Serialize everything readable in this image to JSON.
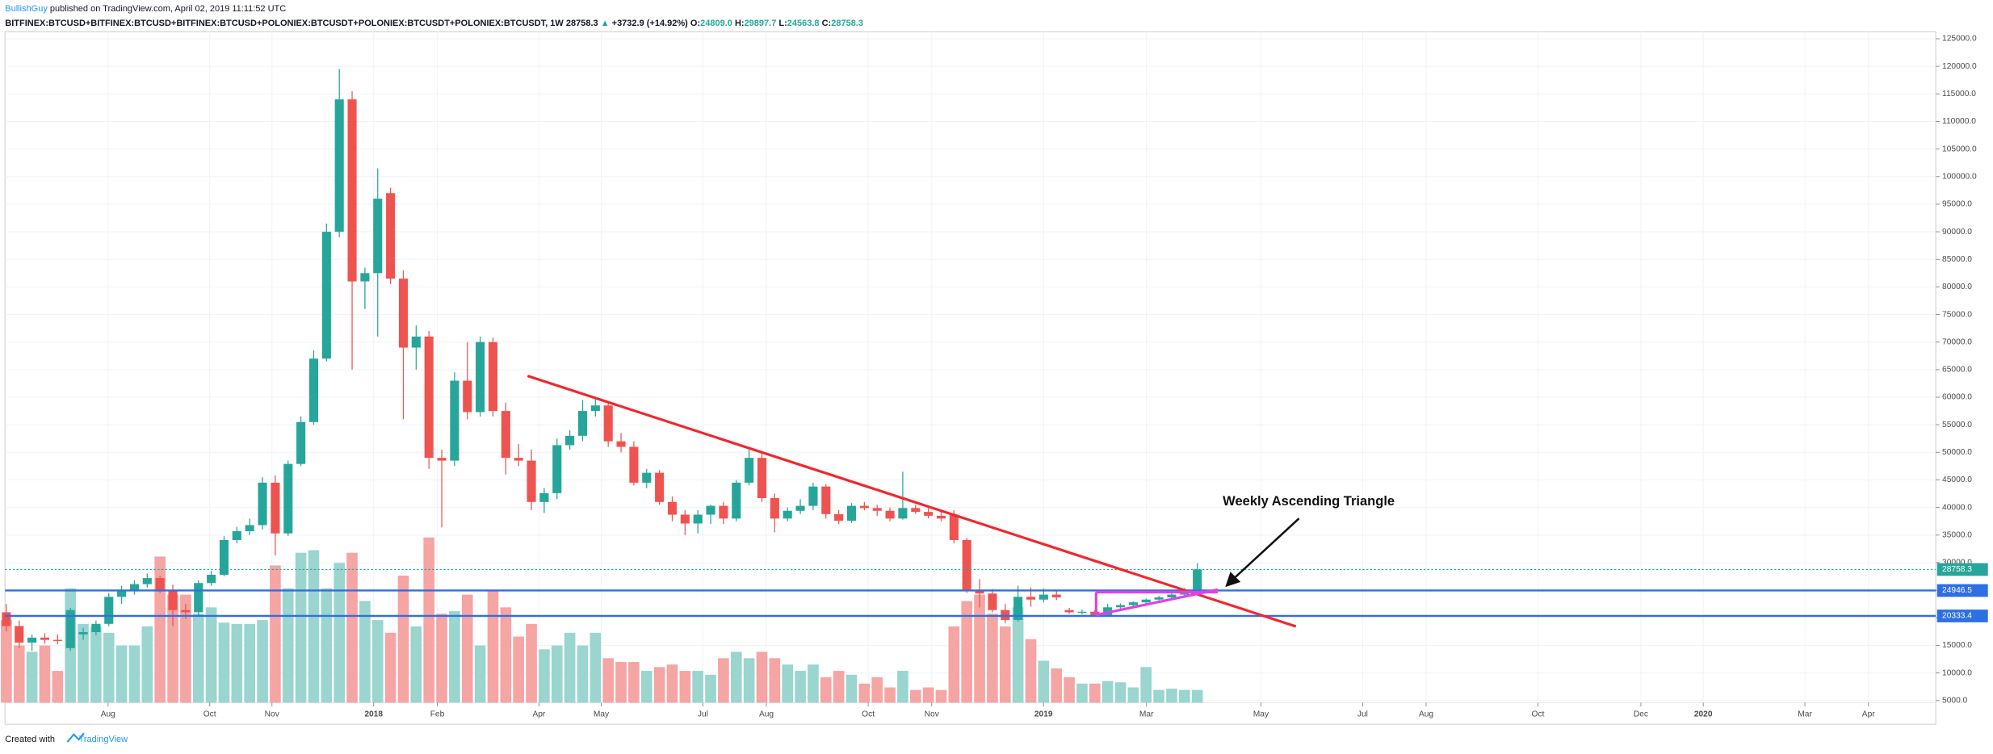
{
  "chart_data": {
    "type": "candlestick",
    "header": {
      "author": "BullishGuy",
      "published": "published on TradingView.com, April 02, 2019 11:11:52 UTC",
      "symbol": "BITFINEX:BTCUSD+BITFINEX:BTCUSD+BITFINEX:BTCUSD+POLONIEX:BTCUSDT+POLONIEX:BTCUSDT+POLONIEX:BTCUSDT, 1W",
      "last": "28758.3",
      "arrow": "▲",
      "change": "+3732.9 (+14.92%)",
      "ohlc": [
        {
          "label": "O:",
          "value": "24809.0"
        },
        {
          "label": "H:",
          "value": "29897.7"
        },
        {
          "label": "L:",
          "value": "24563.8"
        },
        {
          "label": "C:",
          "value": "28758.3"
        }
      ]
    },
    "annotation": "Weekly Ascending Triangle",
    "footer": {
      "text": "Created with",
      "brand": "TradingView"
    },
    "up_color": "#26a69a",
    "down_color": "#ef5350",
    "volume_up_color": "#9ad5cf",
    "volume_down_color": "#f5a5a4",
    "open": [
      21000,
      18500,
      15500,
      16400,
      16000,
      14500,
      17000,
      17400,
      18900,
      23800,
      25000,
      26100,
      27200,
      24900,
      21400,
      21000,
      26300,
      27800,
      34100,
      35700,
      36800,
      44500,
      35300,
      47900,
      55500,
      67000,
      90000,
      114000,
      81000,
      82500,
      97000,
      81500,
      69000,
      71000,
      49000,
      48500,
      63000,
      57300,
      70000,
      57500,
      49000,
      48500,
      41000,
      42600,
      51300,
      53000,
      57500,
      58500,
      52000,
      51000,
      44500,
      46300,
      41000,
      38700,
      37100,
      38700,
      40300,
      38000,
      44500,
      49000,
      41700,
      38000,
      39400,
      40300,
      43800,
      38800,
      37600,
      40300,
      39900,
      39400,
      38000,
      39900,
      39200,
      38500,
      38700,
      34100,
      25000,
      24400,
      21400,
      19600,
      23800,
      23300,
      24200,
      21400,
      21000,
      21100,
      20500,
      21900,
      22300,
      22800,
      23300,
      23700,
      24200,
      24809
    ],
    "high": [
      22500,
      19500,
      17000,
      17200,
      17000,
      21800,
      18200,
      19500,
      24500,
      25800,
      26800,
      28000,
      27600,
      26000,
      22500,
      26800,
      28500,
      34800,
      36500,
      38000,
      45500,
      45800,
      48500,
      56500,
      68500,
      91500,
      119500,
      115500,
      83500,
      101500,
      98000,
      83000,
      73000,
      72000,
      50500,
      64500,
      70000,
      71000,
      70800,
      59000,
      51500,
      50500,
      43500,
      52500,
      54000,
      59500,
      60000,
      59000,
      53500,
      52000,
      47000,
      46800,
      42000,
      39500,
      39500,
      40500,
      41000,
      45000,
      50500,
      50000,
      42500,
      40000,
      41500,
      44500,
      44200,
      39500,
      40800,
      41000,
      40500,
      40000,
      46500,
      40500,
      39900,
      39500,
      39500,
      34500,
      27000,
      25200,
      22500,
      25800,
      25500,
      25300,
      24800,
      21800,
      21500,
      21400,
      22500,
      22600,
      23000,
      23500,
      24000,
      24400,
      25400,
      29897.7
    ],
    "low": [
      17500,
      14500,
      14000,
      15300,
      15200,
      14000,
      16000,
      16800,
      18500,
      22500,
      24200,
      25500,
      24500,
      18500,
      19800,
      20500,
      25800,
      27500,
      33500,
      35000,
      36000,
      31300,
      34800,
      47500,
      55000,
      66500,
      89000,
      65000,
      76000,
      71000,
      80500,
      56000,
      65000,
      47000,
      36400,
      47500,
      56000,
      56500,
      56500,
      46000,
      47500,
      39500,
      39000,
      41500,
      50500,
      52000,
      56500,
      51000,
      50000,
      44000,
      43500,
      40500,
      37500,
      35000,
      35300,
      37000,
      37000,
      37500,
      44000,
      41000,
      35500,
      37500,
      38800,
      39500,
      38000,
      37000,
      37200,
      39500,
      38500,
      37500,
      37800,
      38800,
      38000,
      37500,
      33500,
      24500,
      21900,
      21000,
      19000,
      19300,
      22000,
      22800,
      23200,
      20700,
      20600,
      20200,
      20300,
      21600,
      22100,
      22600,
      23000,
      23500,
      24000,
      24563.8
    ],
    "close": [
      18500,
      15500,
      16400,
      16000,
      15800,
      21400,
      17400,
      18900,
      23800,
      25000,
      26100,
      27200,
      24900,
      21400,
      21000,
      26300,
      27800,
      34100,
      35700,
      36800,
      44500,
      35300,
      47900,
      55500,
      67000,
      90000,
      114000,
      81000,
      82500,
      96000,
      81500,
      69000,
      71000,
      49000,
      48500,
      63000,
      57300,
      70000,
      57500,
      49000,
      48500,
      41000,
      42600,
      51300,
      53000,
      57500,
      58500,
      52000,
      51000,
      44500,
      46300,
      41000,
      38700,
      37100,
      38700,
      40300,
      38000,
      44500,
      49000,
      41700,
      38000,
      39400,
      40300,
      43800,
      38800,
      37600,
      40300,
      39900,
      39400,
      38000,
      39900,
      39200,
      38500,
      38000,
      34100,
      25000,
      24400,
      21400,
      19600,
      23800,
      23300,
      24200,
      23700,
      21000,
      21100,
      20500,
      21900,
      22300,
      22800,
      23300,
      23700,
      24200,
      25025.4,
      28758.3
    ],
    "volume": [
      65,
      45,
      40,
      45,
      25,
      90,
      62,
      60,
      55,
      45,
      45,
      60,
      115,
      85,
      85,
      70,
      75,
      63,
      62,
      62,
      65,
      108,
      90,
      118,
      120,
      90,
      110,
      118,
      80,
      65,
      55,
      100,
      60,
      130,
      70,
      72,
      85,
      45,
      88,
      75,
      52,
      62,
      42,
      45,
      55,
      45,
      55,
      35,
      32,
      32,
      25,
      28,
      30,
      25,
      25,
      22,
      35,
      40,
      35,
      40,
      35,
      30,
      25,
      30,
      20,
      25,
      22,
      15,
      20,
      12,
      25,
      10,
      12,
      10,
      60,
      80,
      85,
      70,
      60,
      75,
      50,
      33,
      27,
      20,
      15,
      15,
      17,
      16,
      12,
      28,
      10,
      11,
      10,
      10
    ],
    "vlim": [
      0,
      528
    ],
    "ylim": [
      4608,
      126267
    ],
    "yticks": [
      {
        "value": 5000,
        "label": "5000.0"
      },
      {
        "value": 10000,
        "label": "10000.0"
      },
      {
        "value": 15000,
        "label": "15000.0"
      },
      {
        "value": 20000,
        "label": "20000.0"
      },
      {
        "value": 25000,
        "label": "25000.0"
      },
      {
        "value": 30000,
        "label": "30000.0"
      },
      {
        "value": 35000,
        "label": "35000.0"
      },
      {
        "value": 40000,
        "label": "40000.0"
      },
      {
        "value": 45000,
        "label": "45000.0"
      },
      {
        "value": 50000,
        "label": "50000.0"
      },
      {
        "value": 55000,
        "label": "55000.0"
      },
      {
        "value": 60000,
        "label": "60000.0"
      },
      {
        "value": 65000,
        "label": "65000.0"
      },
      {
        "value": 70000,
        "label": "70000.0"
      },
      {
        "value": 75000,
        "label": "75000.0"
      },
      {
        "value": 80000,
        "label": "80000.0"
      },
      {
        "value": 85000,
        "label": "85000.0"
      },
      {
        "value": 90000,
        "label": "90000.0"
      },
      {
        "value": 95000,
        "label": "95000.0"
      },
      {
        "value": 100000,
        "label": "100000.0"
      },
      {
        "value": 105000,
        "label": "105000.0"
      },
      {
        "value": 110000,
        "label": "110000.0"
      },
      {
        "value": 115000,
        "label": "115000.0"
      },
      {
        "value": 120000,
        "label": "120000.0"
      },
      {
        "value": 125000,
        "label": "125000.0"
      }
    ],
    "xlim": [
      -0.1,
      150.67
    ],
    "xticks": [
      {
        "value": 7.94,
        "label": "Aug"
      },
      {
        "value": 15.88,
        "label": "Oct"
      },
      {
        "value": 20.74,
        "label": "Nov"
      },
      {
        "value": 28.68,
        "label": "2018"
      },
      {
        "value": 33.65,
        "label": "Feb"
      },
      {
        "value": 41.59,
        "label": "Apr"
      },
      {
        "value": 46.45,
        "label": "May"
      },
      {
        "value": 54.39,
        "label": "Jul"
      },
      {
        "value": 59.35,
        "label": "Aug"
      },
      {
        "value": 67.3,
        "label": "Oct"
      },
      {
        "value": 72.26,
        "label": "Nov"
      },
      {
        "value": 80.99,
        "label": "2019"
      },
      {
        "value": 89.03,
        "label": "Mar"
      },
      {
        "value": 97.97,
        "label": "May"
      },
      {
        "value": 105.91,
        "label": "Jul"
      },
      {
        "value": 110.87,
        "label": "Aug"
      },
      {
        "value": 119.6,
        "label": "Oct"
      },
      {
        "value": 127.64,
        "label": "Dec"
      },
      {
        "value": 132.51,
        "label": "2020"
      },
      {
        "value": 140.45,
        "label": "Mar"
      },
      {
        "value": 145.41,
        "label": "Apr"
      }
    ],
    "grid": true,
    "hlines": [
      {
        "value": 24946.5,
        "color": "#2f6fe4"
      },
      {
        "value": 20333.4,
        "color": "#2f6fe4"
      }
    ],
    "last_price": {
      "value": 28758.3,
      "color": "#26a69a"
    },
    "trendlines": [
      {
        "x": [
          40.7,
          100.7
        ],
        "y": [
          63860,
          18430
        ],
        "color": "#f0282d"
      },
      {
        "x": [
          85.1,
          94.6
        ],
        "y": [
          24650,
          24650
        ],
        "color": "#e040e8"
      },
      {
        "x": [
          85.1,
          94.6
        ],
        "y": [
          20510,
          25120
        ],
        "color": "#e040e8"
      },
      {
        "x": [
          85.1,
          85.1
        ],
        "y": [
          20510,
          24650
        ],
        "color": "#e040e8"
      }
    ]
  }
}
